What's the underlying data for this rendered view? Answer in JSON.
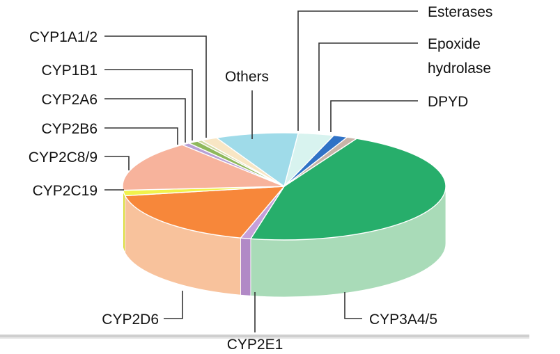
{
  "chart_data": {
    "type": "pie",
    "style": "3d",
    "legend": "none",
    "grid": false,
    "slices": [
      {
        "label": "Esterases",
        "value": 3.5,
        "color": "#d8f3ef",
        "side": "#b9e1db"
      },
      {
        "label": "Epoxide hydrolase",
        "value": 1.4,
        "color": "#2f72c6",
        "side": "#2a60a8"
      },
      {
        "label": "DPYD",
        "value": 1.0,
        "color": "#c8b4a8",
        "side": "#a89488"
      },
      {
        "label": "CYP3A4/5",
        "value": 45.0,
        "color": "#27ae6b",
        "side": "#a9dbb8"
      },
      {
        "label": "CYP2E1",
        "value": 1.0,
        "color": "#c69fda",
        "side": "#b189c6"
      },
      {
        "label": "CYP2D6",
        "value": 17.5,
        "color": "#f7873a",
        "side": "#f8c29c"
      },
      {
        "label": "CYP2C19",
        "value": 1.6,
        "color": "#f1f24c",
        "side": "#d9da38"
      },
      {
        "label": "CYP2C8/9",
        "value": 15.0,
        "color": "#f7b39c",
        "side": "#efa286"
      },
      {
        "label": "CYP2B6",
        "value": 0.8,
        "color": "#b7a0d6",
        "side": "#9d86bd"
      },
      {
        "label": "CYP2A6",
        "value": 1.0,
        "color": "#8fb85c",
        "side": "#7aa049"
      },
      {
        "label": "CYP1B1",
        "value": 0.5,
        "color": "#cfd7a0",
        "side": "#b8c088"
      },
      {
        "label": "CYP1A1/2",
        "value": 1.6,
        "color": "#f8e6c4",
        "side": "#e6d2ad"
      },
      {
        "label": "Others",
        "value": 8.1,
        "color": "#9fdbe9",
        "side": "#84c5d4"
      }
    ],
    "labels": {
      "esterases": "Esterases",
      "epoxide_line1": "Epoxide",
      "epoxide_line2": "hydrolase",
      "dpyd": "DPYD",
      "others": "Others",
      "cyp1a12": "CYP1A1/2",
      "cyp1b1": "CYP1B1",
      "cyp2a6": "CYP2A6",
      "cyp2b6": "CYP2B6",
      "cyp2c89": "CYP2C8/9",
      "cyp2c19": "CYP2C19",
      "cyp2d6": "CYP2D6",
      "cyp2e1": "CYP2E1",
      "cyp3a45": "CYP3A4/5"
    }
  }
}
